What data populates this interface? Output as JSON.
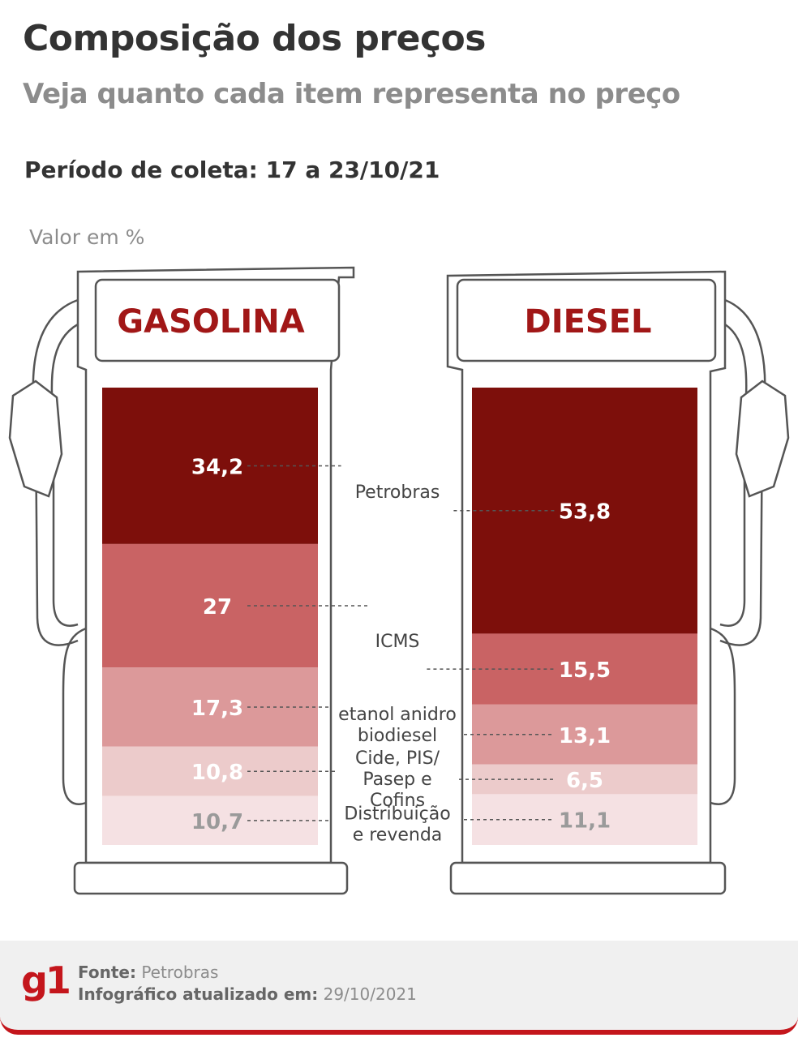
{
  "header": {
    "title": "Composição dos preços",
    "subtitle": "Veja quanto cada item representa no preço",
    "period": "Período de coleta: 17 a 23/10/21",
    "unit": "Valor em %"
  },
  "chart_data": {
    "type": "bar",
    "stacked": true,
    "orientation": "vertical",
    "categories": [
      "GASOLINA",
      "DIESEL"
    ],
    "series": [
      {
        "name": "Petrobras",
        "label_lines": [
          "Petrobras"
        ],
        "values": [
          34.2,
          53.8
        ],
        "value_labels": [
          "34,2",
          "53,8"
        ],
        "color": "#7d0f0b",
        "label_color": "#ffffff"
      },
      {
        "name": "ICMS",
        "label_lines": [
          "ICMS"
        ],
        "values": [
          27,
          15.5
        ],
        "value_labels": [
          "27",
          "15,5"
        ],
        "color": "#c96364",
        "label_color": "#ffffff"
      },
      {
        "name": "etanol anidro / biodiesel",
        "label_lines": [
          "etanol anidro",
          "biodiesel"
        ],
        "values": [
          17.3,
          13.1
        ],
        "value_labels": [
          "17,3",
          "13,1"
        ],
        "color": "#dc999a",
        "label_color": "#ffffff"
      },
      {
        "name": "Cide, PIS/Pasep e Cofins",
        "label_lines": [
          "Cide, PIS/",
          "Pasep e",
          "Cofins"
        ],
        "values": [
          10.8,
          6.5
        ],
        "value_labels": [
          "10,8",
          "6,5"
        ],
        "color": "#eccbcb",
        "label_color": "#ffffff"
      },
      {
        "name": "Distribuição e revenda",
        "label_lines": [
          "Distribuição",
          "e revenda"
        ],
        "values": [
          10.7,
          11.1
        ],
        "value_labels": [
          "10,7",
          "11,1"
        ],
        "color": "#f5e1e3",
        "label_color": "#9a9a9a"
      }
    ],
    "colors": {
      "title_red": "#a11717",
      "outline": "#555555"
    }
  },
  "footer": {
    "logo": "g1",
    "source_label": "Fonte:",
    "source_value": "Petrobras",
    "updated_label": "Infográfico atualizado em:",
    "updated_value": "29/10/2021"
  }
}
